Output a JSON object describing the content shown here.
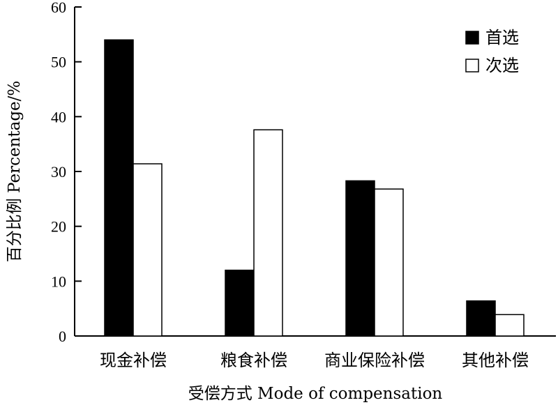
{
  "chart_data": {
    "type": "bar",
    "categories": [
      "现金补偿",
      "粮食补偿",
      "商业保险补偿",
      "其他补偿"
    ],
    "series": [
      {
        "name": "首选",
        "values": [
          54,
          12,
          28.3,
          6.4
        ],
        "color": "#000000"
      },
      {
        "name": "次选",
        "values": [
          31.4,
          37.6,
          26.8,
          3.9
        ],
        "color": "#ffffff"
      }
    ],
    "xlabel": "受偿方式 Mode of compensation",
    "ylabel": "百分比例 Percentage/%",
    "ylim": [
      0,
      60
    ],
    "yticks": [
      0,
      10,
      20,
      30,
      40,
      50,
      60
    ],
    "grid": false,
    "legend_position": "top-right"
  }
}
